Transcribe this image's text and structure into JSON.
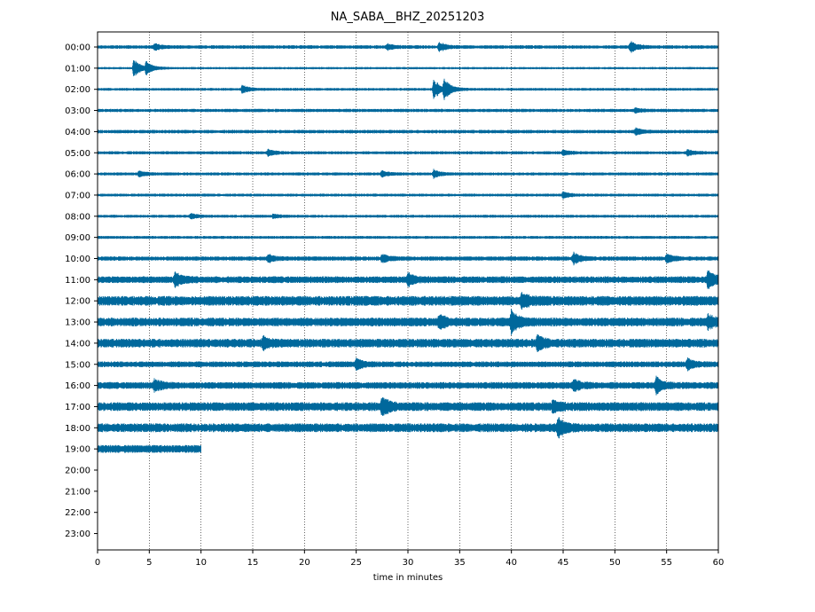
{
  "chart_data": {
    "type": "line",
    "title": "NA_SABA__BHZ_20251203",
    "xlabel": "time in minutes",
    "ylabel": "",
    "xlim": [
      0,
      60
    ],
    "x_ticks": [
      0,
      5,
      10,
      15,
      20,
      25,
      30,
      35,
      40,
      45,
      50,
      55,
      60
    ],
    "vertical_gridlines": "dotted at every 5 minutes",
    "trace_color": "#00689c",
    "rows": [
      {
        "label": "00:00",
        "minutes_recorded": 60,
        "noise_level": 0.18,
        "events": [
          {
            "t": 5.5,
            "amp": 0.3
          },
          {
            "t": 28,
            "amp": 0.25
          },
          {
            "t": 33,
            "amp": 0.45
          },
          {
            "t": 51.5,
            "amp": 0.55
          }
        ]
      },
      {
        "label": "01:00",
        "minutes_recorded": 60,
        "noise_level": 0.12,
        "events": [
          {
            "t": 3.5,
            "amp": 0.9
          },
          {
            "t": 4.7,
            "amp": 0.6
          }
        ]
      },
      {
        "label": "02:00",
        "minutes_recorded": 60,
        "noise_level": 0.14,
        "events": [
          {
            "t": 14,
            "amp": 0.4
          },
          {
            "t": 32.5,
            "amp": 1.1
          },
          {
            "t": 33.5,
            "amp": 0.9
          }
        ]
      },
      {
        "label": "03:00",
        "minutes_recorded": 60,
        "noise_level": 0.17,
        "events": [
          {
            "t": 52,
            "amp": 0.2
          }
        ]
      },
      {
        "label": "04:00",
        "minutes_recorded": 60,
        "noise_level": 0.18,
        "events": [
          {
            "t": 52,
            "amp": 0.3
          }
        ]
      },
      {
        "label": "05:00",
        "minutes_recorded": 60,
        "noise_level": 0.16,
        "events": [
          {
            "t": 16.5,
            "amp": 0.3
          },
          {
            "t": 45,
            "amp": 0.25
          },
          {
            "t": 57,
            "amp": 0.3
          }
        ]
      },
      {
        "label": "06:00",
        "minutes_recorded": 60,
        "noise_level": 0.16,
        "events": [
          {
            "t": 4,
            "amp": 0.25
          },
          {
            "t": 27.5,
            "amp": 0.3
          },
          {
            "t": 32.5,
            "amp": 0.4
          }
        ]
      },
      {
        "label": "07:00",
        "minutes_recorded": 60,
        "noise_level": 0.15,
        "events": [
          {
            "t": 45,
            "amp": 0.3
          }
        ]
      },
      {
        "label": "08:00",
        "minutes_recorded": 60,
        "noise_level": 0.15,
        "events": [
          {
            "t": 9,
            "amp": 0.25
          },
          {
            "t": 17,
            "amp": 0.2
          }
        ]
      },
      {
        "label": "09:00",
        "minutes_recorded": 60,
        "noise_level": 0.15,
        "events": []
      },
      {
        "label": "10:00",
        "minutes_recorded": 60,
        "noise_level": 0.22,
        "events": [
          {
            "t": 16.5,
            "amp": 0.35
          },
          {
            "t": 27.5,
            "amp": 0.4
          },
          {
            "t": 46,
            "amp": 0.6
          },
          {
            "t": 55,
            "amp": 0.45
          }
        ]
      },
      {
        "label": "11:00",
        "minutes_recorded": 60,
        "noise_level": 0.35,
        "events": [
          {
            "t": 7.5,
            "amp": 0.6
          },
          {
            "t": 30,
            "amp": 0.6
          },
          {
            "t": 59,
            "amp": 0.9
          }
        ]
      },
      {
        "label": "12:00",
        "minutes_recorded": 60,
        "noise_level": 0.5,
        "events": [
          {
            "t": 41,
            "amp": 0.6
          }
        ]
      },
      {
        "label": "13:00",
        "minutes_recorded": 60,
        "noise_level": 0.45,
        "events": [
          {
            "t": 33,
            "amp": 0.6
          },
          {
            "t": 40,
            "amp": 1.0
          },
          {
            "t": 59,
            "amp": 0.6
          }
        ]
      },
      {
        "label": "14:00",
        "minutes_recorded": 60,
        "noise_level": 0.45,
        "events": [
          {
            "t": 16,
            "amp": 0.5
          },
          {
            "t": 42.5,
            "amp": 0.7
          }
        ]
      },
      {
        "label": "15:00",
        "minutes_recorded": 60,
        "noise_level": 0.3,
        "events": [
          {
            "t": 25,
            "amp": 0.5
          },
          {
            "t": 57,
            "amp": 0.5
          }
        ]
      },
      {
        "label": "16:00",
        "minutes_recorded": 60,
        "noise_level": 0.35,
        "events": [
          {
            "t": 5.5,
            "amp": 0.5
          },
          {
            "t": 46,
            "amp": 0.5
          },
          {
            "t": 54,
            "amp": 0.7
          }
        ]
      },
      {
        "label": "17:00",
        "minutes_recorded": 60,
        "noise_level": 0.45,
        "events": [
          {
            "t": 27.5,
            "amp": 0.9
          },
          {
            "t": 44,
            "amp": 0.5
          }
        ]
      },
      {
        "label": "18:00",
        "minutes_recorded": 60,
        "noise_level": 0.45,
        "events": [
          {
            "t": 44.5,
            "amp": 0.9
          }
        ]
      },
      {
        "label": "19:00",
        "minutes_recorded": 10,
        "noise_level": 0.4,
        "events": []
      },
      {
        "label": "20:00",
        "minutes_recorded": 0,
        "noise_level": 0,
        "events": []
      },
      {
        "label": "21:00",
        "minutes_recorded": 0,
        "noise_level": 0,
        "events": []
      },
      {
        "label": "22:00",
        "minutes_recorded": 0,
        "noise_level": 0,
        "events": []
      },
      {
        "label": "23:00",
        "minutes_recorded": 0,
        "noise_level": 0,
        "events": []
      }
    ]
  }
}
